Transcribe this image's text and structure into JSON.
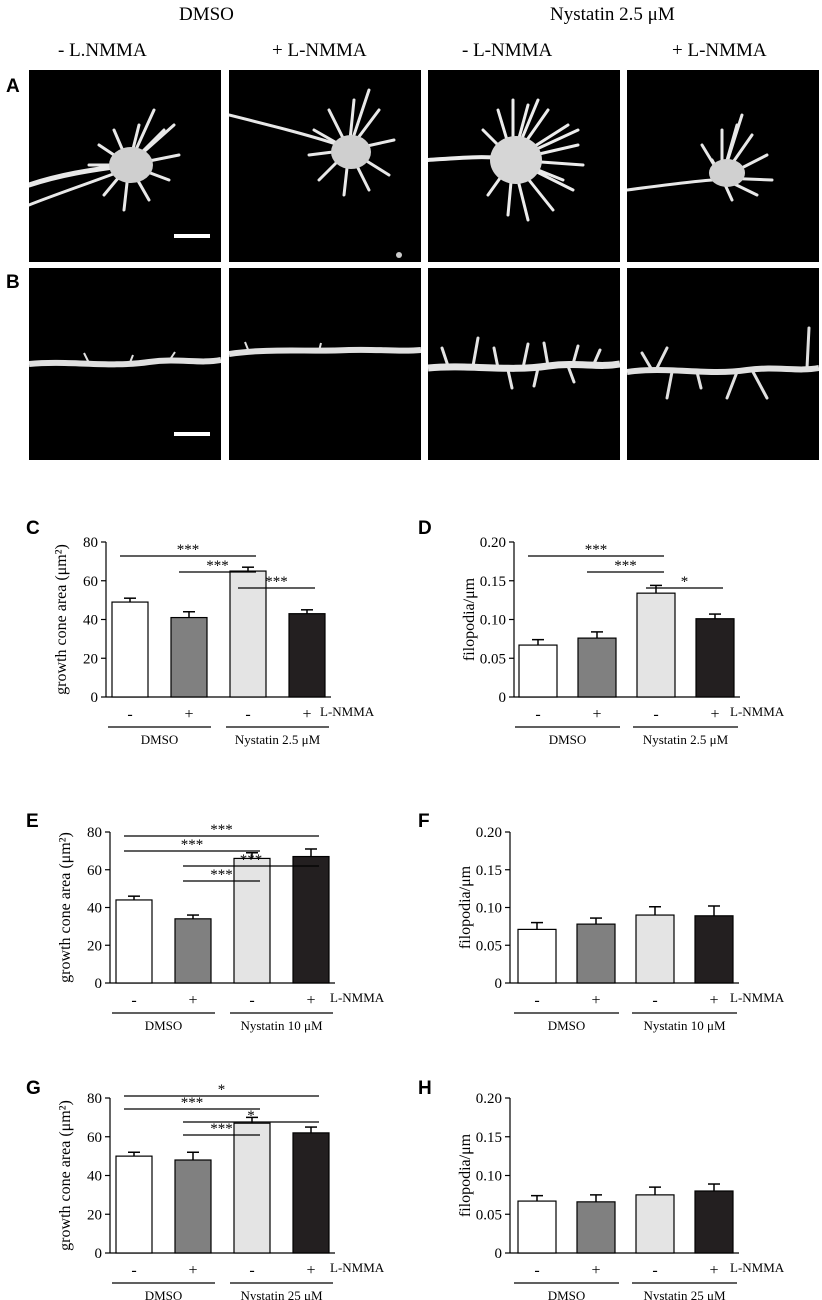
{
  "header": {
    "group_dmso": "DMSO",
    "group_nystatin": "Nystatin 2.5 μM",
    "columns": [
      "- L.NMMA",
      "+ L-NMMA",
      "- L-NMMA",
      "+ L-NMMA"
    ]
  },
  "panel_labels": {
    "A": "A",
    "B": "B",
    "C": "C",
    "D": "D",
    "E": "E",
    "F": "F",
    "G": "G",
    "H": "H"
  },
  "micrographs": {
    "A": [
      "growth cone, DMSO - L-NMMA",
      "growth cone, DMSO + L-NMMA",
      "growth cone, Nystatin - L-NMMA",
      "growth cone, Nystatin + L-NMMA"
    ],
    "B": [
      "neurite, DMSO - L-NMMA",
      "neurite, DMSO + L-NMMA",
      "neurite, Nystatin - L-NMMA",
      "neurite, Nystatin + L-NMMA"
    ]
  },
  "colors": {
    "dmso_minus": "#ffffff",
    "dmso_plus": "#808080",
    "nys_minus": "#e4e4e4",
    "nys_plus": "#231f20"
  },
  "chart_data": [
    {
      "panel": "C",
      "type": "bar",
      "ylabel": "growth cone area (μm²)",
      "ylim": [
        0,
        80
      ],
      "yticks": [
        0,
        20,
        40,
        60,
        80
      ],
      "ytick_labels": [
        "0",
        "20",
        "40",
        "60",
        "80"
      ],
      "categories": [
        "-",
        "+",
        "-",
        "+"
      ],
      "values": [
        49,
        41,
        65,
        43
      ],
      "errors": [
        2,
        3,
        2,
        2
      ],
      "group_labels": [
        "DMSO",
        "Nystatin 2.5 μM"
      ],
      "right_label": "L-NMMA",
      "significance": [
        {
          "from": 0,
          "to": 2,
          "label": "***"
        },
        {
          "from": 1,
          "to": 2,
          "label": "***"
        },
        {
          "from": 2,
          "to": 3,
          "label": "***"
        }
      ]
    },
    {
      "panel": "D",
      "type": "bar",
      "ylabel": "filopodia/μm",
      "ylim": [
        0,
        0.2
      ],
      "yticks": [
        0,
        0.05,
        0.1,
        0.15,
        0.2
      ],
      "ytick_labels": [
        "0",
        "0.05",
        "0.10",
        "0.15",
        "0.20"
      ],
      "categories": [
        "-",
        "+",
        "-",
        "+"
      ],
      "values": [
        0.067,
        0.076,
        0.134,
        0.101
      ],
      "errors": [
        0.007,
        0.008,
        0.01,
        0.006
      ],
      "group_labels": [
        "DMSO",
        "Nystatin 2.5 μM"
      ],
      "right_label": "L-NMMA",
      "significance": [
        {
          "from": 0,
          "to": 2,
          "label": "***"
        },
        {
          "from": 1,
          "to": 2,
          "label": "***"
        },
        {
          "from": 2,
          "to": 3,
          "label": "*"
        }
      ]
    },
    {
      "panel": "E",
      "type": "bar",
      "ylabel": "growth cone area (μm²)",
      "ylim": [
        0,
        80
      ],
      "yticks": [
        0,
        20,
        40,
        60,
        80
      ],
      "ytick_labels": [
        "0",
        "20",
        "40",
        "60",
        "80"
      ],
      "categories": [
        "-",
        "+",
        "-",
        "+"
      ],
      "values": [
        44,
        34,
        66,
        67
      ],
      "errors": [
        2,
        2,
        3,
        4
      ],
      "group_labels": [
        "DMSO",
        "Nystatin 10 μM"
      ],
      "right_label": "L-NMMA",
      "significance": [
        {
          "from": 0,
          "to": 3,
          "label": "***"
        },
        {
          "from": 0,
          "to": 2,
          "label": "***"
        },
        {
          "from": 1,
          "to": 3,
          "label": "***"
        },
        {
          "from": 1,
          "to": 2,
          "label": "***"
        }
      ]
    },
    {
      "panel": "F",
      "type": "bar",
      "ylabel": "filopodia/μm",
      "ylim": [
        0,
        0.2
      ],
      "yticks": [
        0,
        0.05,
        0.1,
        0.15,
        0.2
      ],
      "ytick_labels": [
        "0",
        "0.05",
        "0.10",
        "0.15",
        "0.20"
      ],
      "categories": [
        "-",
        "+",
        "-",
        "+"
      ],
      "values": [
        0.071,
        0.078,
        0.09,
        0.089
      ],
      "errors": [
        0.009,
        0.008,
        0.011,
        0.013
      ],
      "group_labels": [
        "DMSO",
        "Nystatin 10 μM"
      ],
      "right_label": "L-NMMA",
      "significance": []
    },
    {
      "panel": "G",
      "type": "bar",
      "ylabel": "growth cone area (μm²)",
      "ylim": [
        0,
        80
      ],
      "yticks": [
        0,
        20,
        40,
        60,
        80
      ],
      "ytick_labels": [
        "0",
        "20",
        "40",
        "60",
        "80"
      ],
      "categories": [
        "-",
        "+",
        "-",
        "+"
      ],
      "values": [
        50,
        48,
        67,
        62
      ],
      "errors": [
        2,
        4,
        3,
        3
      ],
      "group_labels": [
        "DMSO",
        "Nystatin 25 μM"
      ],
      "right_label": "L-NMMA",
      "significance": [
        {
          "from": 0,
          "to": 3,
          "label": "*"
        },
        {
          "from": 0,
          "to": 2,
          "label": "***"
        },
        {
          "from": 1,
          "to": 3,
          "label": "*"
        },
        {
          "from": 1,
          "to": 2,
          "label": "***"
        }
      ]
    },
    {
      "panel": "H",
      "type": "bar",
      "ylabel": "filopodia/μm",
      "ylim": [
        0,
        0.2
      ],
      "yticks": [
        0,
        0.05,
        0.1,
        0.15,
        0.2
      ],
      "ytick_labels": [
        "0",
        "0.05",
        "0.10",
        "0.15",
        "0.20"
      ],
      "categories": [
        "-",
        "+",
        "-",
        "+"
      ],
      "values": [
        0.067,
        0.066,
        0.075,
        0.08
      ],
      "errors": [
        0.007,
        0.009,
        0.01,
        0.009
      ],
      "group_labels": [
        "DMSO",
        "Nystatin 25 μM"
      ],
      "right_label": "L-NMMA",
      "significance": []
    }
  ]
}
